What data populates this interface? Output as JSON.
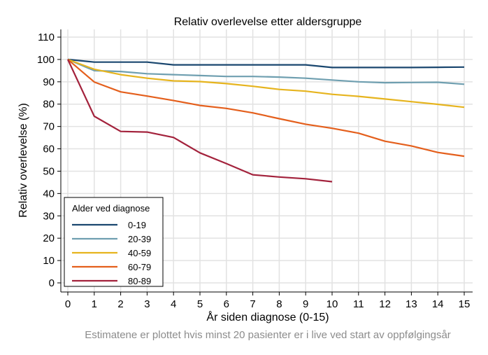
{
  "chart_data": {
    "type": "line",
    "title": "Relativ overlevelse etter aldersgruppe",
    "xlabel": "År siden diagnose (0-15)",
    "ylabel": "Relativ overlevelse (%)",
    "note": "Estimatene er plottet hvis minst 20 pasienter er i live ved start av oppfølgingsår",
    "xlim": [
      0,
      15
    ],
    "ylim": [
      0,
      110
    ],
    "xticks": [
      0,
      1,
      2,
      3,
      4,
      5,
      6,
      7,
      8,
      9,
      10,
      11,
      12,
      13,
      14,
      15
    ],
    "yticks": [
      0,
      10,
      20,
      30,
      40,
      50,
      60,
      70,
      80,
      90,
      100,
      110
    ],
    "grid": true,
    "legend": {
      "title": "Alder ved diagnose",
      "placement": "bottom-left"
    },
    "series": [
      {
        "name": "0-19",
        "color": "#1a476f",
        "x": [
          0,
          1,
          2,
          3,
          4,
          5,
          6,
          7,
          8,
          9,
          10,
          11,
          12,
          13,
          14,
          15
        ],
        "y": [
          100,
          98.8,
          98.8,
          98.8,
          97.6,
          97.6,
          97.6,
          97.6,
          97.6,
          97.6,
          96.4,
          96.4,
          96.4,
          96.4,
          96.5,
          96.6
        ]
      },
      {
        "name": "20-39",
        "color": "#6f9fb0",
        "x": [
          0,
          1,
          2,
          3,
          4,
          5,
          6,
          7,
          8,
          9,
          10,
          11,
          12,
          13,
          14,
          15
        ],
        "y": [
          100,
          95,
          94.6,
          93.6,
          93.2,
          92.8,
          92.4,
          92.4,
          92.1,
          91.6,
          90.8,
          90,
          89.6,
          89.7,
          89.8,
          88.9
        ]
      },
      {
        "name": "40-59",
        "color": "#e6b41e",
        "x": [
          0,
          1,
          2,
          3,
          4,
          5,
          6,
          7,
          8,
          9,
          10,
          11,
          12,
          13,
          14,
          15
        ],
        "y": [
          100,
          95.6,
          93.2,
          91.6,
          90.4,
          90.1,
          89.2,
          88,
          86.6,
          85.8,
          84.4,
          83.5,
          82.3,
          81.1,
          79.9,
          78.6
        ]
      },
      {
        "name": "60-79",
        "color": "#e45f1c",
        "x": [
          0,
          1,
          2,
          3,
          4,
          5,
          6,
          7,
          8,
          9,
          10,
          11,
          12,
          13,
          14,
          15
        ],
        "y": [
          100,
          89.9,
          85.5,
          83.6,
          81.6,
          79.4,
          78.1,
          76.1,
          73.5,
          71,
          69.2,
          67,
          63.4,
          61.3,
          58.4,
          56.7
        ]
      },
      {
        "name": "80-89",
        "color": "#a3223c",
        "x": [
          0,
          1,
          2,
          3,
          4,
          5,
          6,
          7,
          8,
          9,
          10
        ],
        "y": [
          100,
          74.6,
          67.8,
          67.5,
          65.1,
          58.2,
          53.4,
          48.4,
          47.4,
          46.6,
          45.3
        ]
      }
    ]
  }
}
